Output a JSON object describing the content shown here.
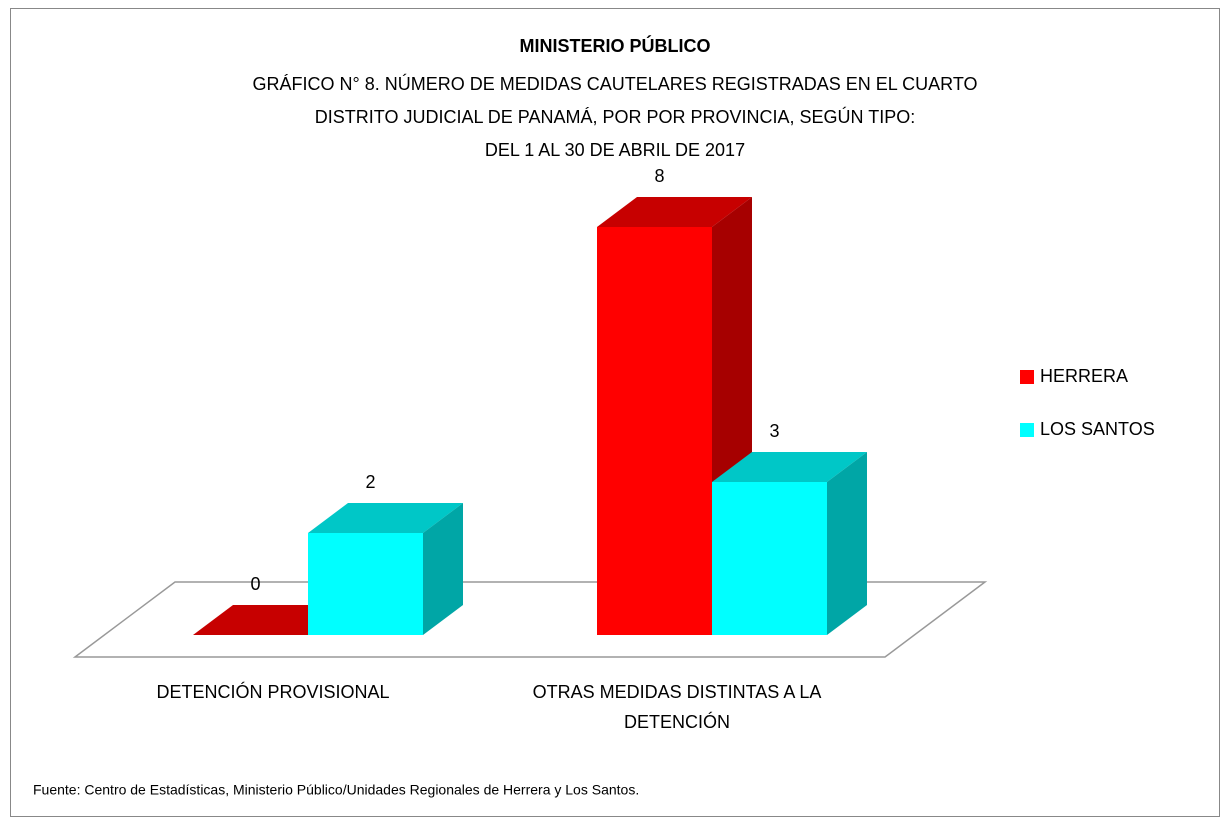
{
  "chart_data": {
    "type": "bar3d",
    "title": "MINISTERIO PÚBLICO",
    "subtitle": [
      "GRÁFICO N° 8. NÚMERO DE MEDIDAS CAUTELARES REGISTRADAS EN EL CUARTO",
      "DISTRITO JUDICIAL DE PANAMÁ, POR POR PROVINCIA, SEGÚN TIPO:",
      "DEL 1 AL 30 DE ABRIL DE 2017"
    ],
    "categories": [
      "DETENCIÓN PROVISIONAL",
      "OTRAS MEDIDAS DISTINTAS A LA DETENCIÓN"
    ],
    "series": [
      {
        "name": "HERRERA",
        "color": "#ff0000",
        "values": [
          0,
          8
        ]
      },
      {
        "name": "LOS SANTOS",
        "color": "#00ffff",
        "values": [
          2,
          3
        ]
      }
    ],
    "legend": "right",
    "source": "Fuente: Centro de Estadísticas, Ministerio Público/Unidades Regionales de Herrera y Los Santos."
  }
}
